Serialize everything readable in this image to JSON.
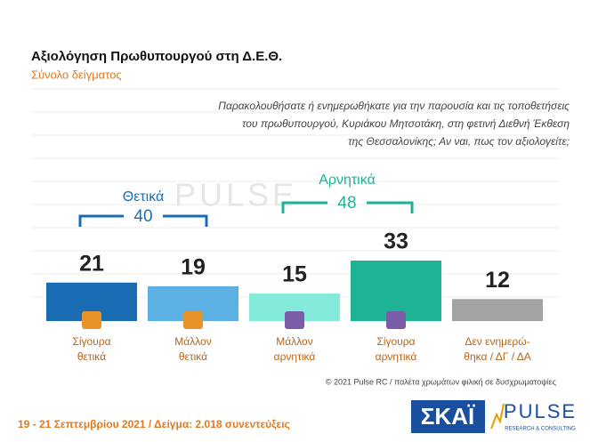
{
  "chart_data": {
    "type": "bar",
    "title": "Αξιολόγηση Πρωθυπουργού στη Δ.Ε.Θ.",
    "subtitle": "Σύνολο δείγματος",
    "question": [
      "Παρακολουθήσατε ή ενημερωθήκατε για την παρουσία και τις τοποθετήσεις",
      "του πρωθυπουργού, Κυριάκου Μητσοτάκη, στη φετινή Διεθνή Έκθεση",
      "της Θεσσαλονίκης; Αν ναι, πως τον αξιολογείτε;"
    ],
    "categories": [
      [
        "Σίγουρα",
        "θετικά"
      ],
      [
        "Μάλλον",
        "θετικά"
      ],
      [
        "Μάλλον",
        "αρνητικά"
      ],
      [
        "Σίγουρα",
        "αρνητικά"
      ],
      [
        "Δεν ενημερώ-",
        "θηκα / ΔΓ / ΔΑ"
      ]
    ],
    "values": [
      21,
      19,
      15,
      33,
      12
    ],
    "colors": [
      "#1b6db3",
      "#5db0e4",
      "#84ead9",
      "#1db394",
      "#a3a3a3"
    ],
    "groups": [
      {
        "label": "Θετικά",
        "total": 40,
        "color": "#1b6db3"
      },
      {
        "label": "Αρνητικά",
        "total": 48,
        "color": "#1db394"
      }
    ],
    "copyright": "© 2021 Pulse RC  /  παλέτα χρωμάτων φιλική σε δυσχρωματοψίες",
    "footer": "19 - 21 Σεπτεμβρίου 2021  /  Δείγμα:  2.018 συνεντεύξεις",
    "logo_left": "ΣΚΑΪ",
    "logo_right": "PULSE",
    "logo_right_sub": "RESEARCH & CONSULTING"
  }
}
